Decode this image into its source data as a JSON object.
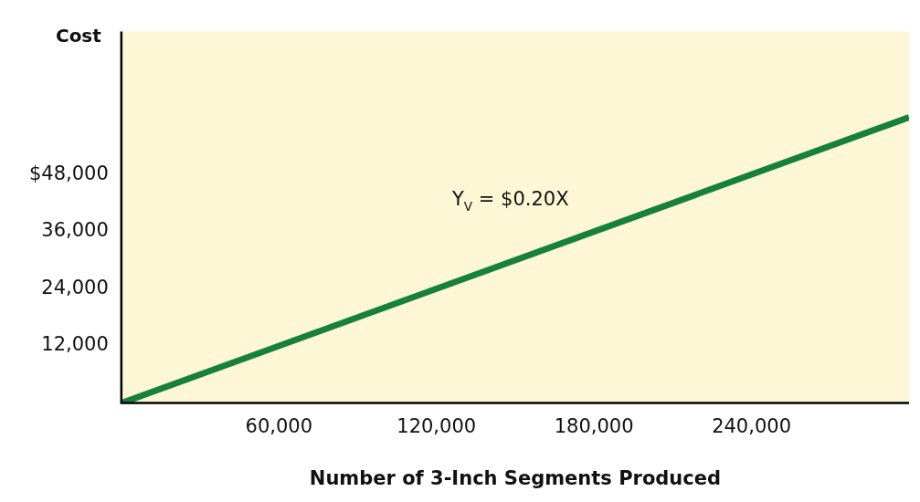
{
  "chart_data": {
    "type": "line",
    "ylabel": "Cost",
    "xlabel": "Number of 3-Inch Segments Produced",
    "x": [
      0,
      300000
    ],
    "series": [
      {
        "color": "#17803d",
        "values": [
          0,
          60000
        ]
      }
    ],
    "xlim": [
      0,
      300000
    ],
    "xticks": [
      {
        "value": 60000,
        "label": "60,000"
      },
      {
        "value": 120000,
        "label": "120,000"
      },
      {
        "value": 180000,
        "label": "180,000"
      },
      {
        "value": 240000,
        "label": "240,000"
      }
    ],
    "ylim": [
      0,
      78000
    ],
    "yticks": [
      {
        "value": 12000,
        "label": "12,000"
      },
      {
        "value": 24000,
        "label": "24,000"
      },
      {
        "value": 36000,
        "label": "36,000"
      },
      {
        "value": 48000,
        "label": "$48,000"
      }
    ],
    "grid": false,
    "legend": false,
    "marker": "none",
    "line_style": "solid",
    "annotations": [
      "Y$_{V}$ = $0.20X"
    ]
  }
}
